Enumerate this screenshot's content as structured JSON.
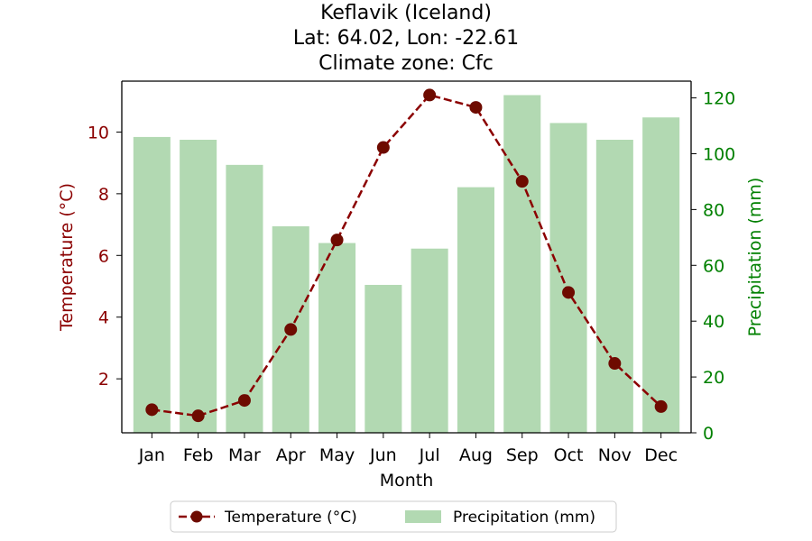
{
  "chart_data": {
    "type": "bar",
    "title": [
      "Keflavik (Iceland)",
      "Lat: 64.02, Lon: -22.61",
      "Climate zone: Cfc"
    ],
    "xlabel": "Month",
    "ylabel_left": "Temperature (°C)",
    "ylabel_right": "Precipitation (mm)",
    "categories": [
      "Jan",
      "Feb",
      "Mar",
      "Apr",
      "May",
      "Jun",
      "Jul",
      "Aug",
      "Sep",
      "Oct",
      "Nov",
      "Dec"
    ],
    "series": [
      {
        "name": "Temperature (°C)",
        "type": "line",
        "axis": "left",
        "color": "#8b0000",
        "line_style": "dashed",
        "marker": "circle",
        "values": [
          1.0,
          0.8,
          1.3,
          3.6,
          6.5,
          9.5,
          11.2,
          10.8,
          8.4,
          4.8,
          2.5,
          1.1
        ]
      },
      {
        "name": "Precipitation (mm)",
        "type": "bar",
        "axis": "right",
        "color": "#b2d9b2",
        "values": [
          106,
          105,
          96,
          74,
          68,
          53,
          66,
          88,
          121,
          111,
          105,
          113
        ]
      }
    ],
    "ylim_left": [
      0.25,
      11.65
    ],
    "yticks_left": [
      2,
      4,
      6,
      8,
      10
    ],
    "ylim_right": [
      0,
      126
    ],
    "yticks_right": [
      0,
      20,
      40,
      60,
      80,
      100,
      120
    ],
    "left_axis_color": "#8b0000",
    "right_axis_color": "#008000",
    "legend": {
      "placement": "bottom-center",
      "entries": [
        "Temperature (°C)",
        "Precipitation (mm)"
      ]
    },
    "grid": false
  }
}
